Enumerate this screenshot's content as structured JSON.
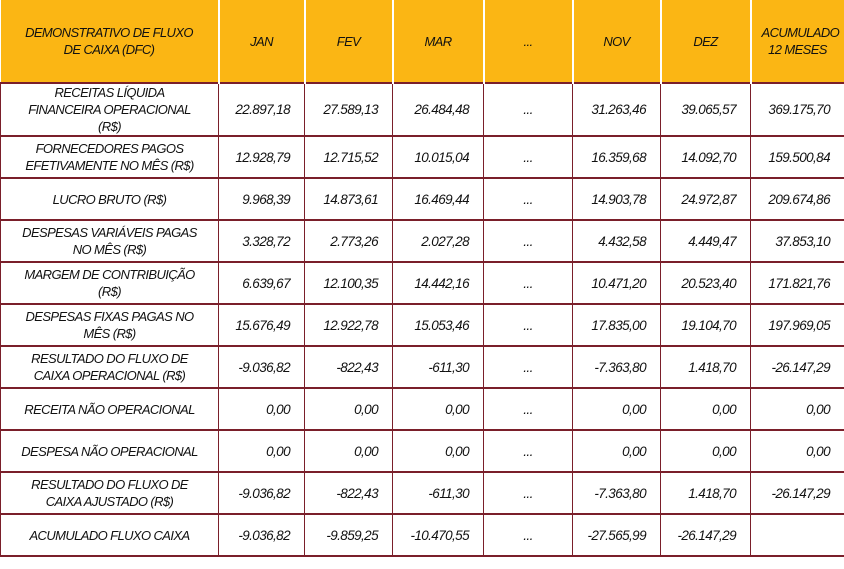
{
  "header": {
    "title": "DEMONSTRATIVO DE FLUXO DE CAIXA (DFC)",
    "columns": [
      "JAN",
      "FEV",
      "MAR",
      "...",
      "NOV",
      "DEZ",
      "ACUMULADO 12 MESES"
    ]
  },
  "colors": {
    "header_bg": "#fbb614",
    "border": "#7a1f2a"
  },
  "rows": [
    {
      "label": "RECEITAS LÍQUIDA FINANCEIRA OPERACIONAL (R$)",
      "values": [
        "22.897,18",
        "27.589,13",
        "26.484,48",
        "...",
        "31.263,46",
        "39.065,57",
        "369.175,70"
      ]
    },
    {
      "label": "FORNECEDORES PAGOS EFETIVAMENTE NO MÊS (R$)",
      "values": [
        "12.928,79",
        "12.715,52",
        "10.015,04",
        "...",
        "16.359,68",
        "14.092,70",
        "159.500,84"
      ]
    },
    {
      "label": "LUCRO BRUTO (R$)",
      "values": [
        "9.968,39",
        "14.873,61",
        "16.469,44",
        "...",
        "14.903,78",
        "24.972,87",
        "209.674,86"
      ]
    },
    {
      "label": "DESPESAS VARIÁVEIS PAGAS NO MÊS (R$)",
      "values": [
        "3.328,72",
        "2.773,26",
        "2.027,28",
        "...",
        "4.432,58",
        "4.449,47",
        "37.853,10"
      ]
    },
    {
      "label": "MARGEM DE CONTRIBUIÇÃO (R$)",
      "values": [
        "6.639,67",
        "12.100,35",
        "14.442,16",
        "...",
        "10.471,20",
        "20.523,40",
        "171.821,76"
      ]
    },
    {
      "label": "DESPESAS FIXAS PAGAS NO MÊS (R$)",
      "values": [
        "15.676,49",
        "12.922,78",
        "15.053,46",
        "...",
        "17.835,00",
        "19.104,70",
        "197.969,05"
      ]
    },
    {
      "label": "RESULTADO DO FLUXO DE CAIXA OPERACIONAL (R$)",
      "values": [
        "-9.036,82",
        "-822,43",
        "-611,30",
        "...",
        "-7.363,80",
        "1.418,70",
        "-26.147,29"
      ]
    },
    {
      "label": "RECEITA NÃO OPERACIONAL",
      "values": [
        "0,00",
        "0,00",
        "0,00",
        "...",
        "0,00",
        "0,00",
        "0,00"
      ]
    },
    {
      "label": "DESPESA NÃO OPERACIONAL",
      "values": [
        "0,00",
        "0,00",
        "0,00",
        "...",
        "0,00",
        "0,00",
        "0,00"
      ]
    },
    {
      "label": "RESULTADO DO FLUXO DE CAIXA AJUSTADO (R$)",
      "values": [
        "-9.036,82",
        "-822,43",
        "-611,30",
        "...",
        "-7.363,80",
        "1.418,70",
        "-26.147,29"
      ]
    },
    {
      "label": "ACUMULADO FLUXO CAIXA",
      "values": [
        "-9.036,82",
        "-9.859,25",
        "-10.470,55",
        "...",
        "-27.565,99",
        "-26.147,29",
        ""
      ]
    }
  ]
}
